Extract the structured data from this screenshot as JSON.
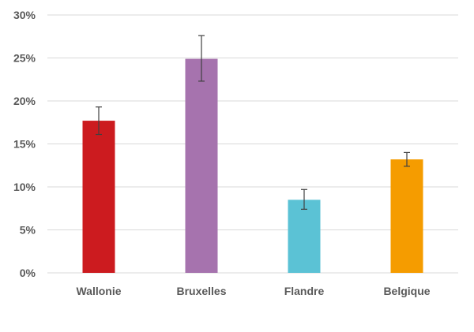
{
  "chart_data": {
    "type": "bar",
    "title": "",
    "xlabel": "",
    "ylabel": "",
    "categories": [
      "Wallonie",
      "Bruxelles",
      "Flandre",
      "Belgique"
    ],
    "values": [
      17.7,
      24.9,
      8.5,
      13.2
    ],
    "error_low": [
      16.1,
      22.3,
      7.4,
      12.4
    ],
    "error_high": [
      19.3,
      27.6,
      9.7,
      14.0
    ],
    "colors": [
      "#cc1b1f",
      "#a673ae",
      "#5bc2d5",
      "#f59c00"
    ],
    "ylim": [
      0,
      30
    ],
    "yticks": [
      0,
      5,
      10,
      15,
      20,
      25,
      30
    ],
    "ytick_labels": [
      "0%",
      "5%",
      "10%",
      "15%",
      "20%",
      "25%",
      "30%"
    ],
    "grid": true,
    "legend": "none"
  }
}
